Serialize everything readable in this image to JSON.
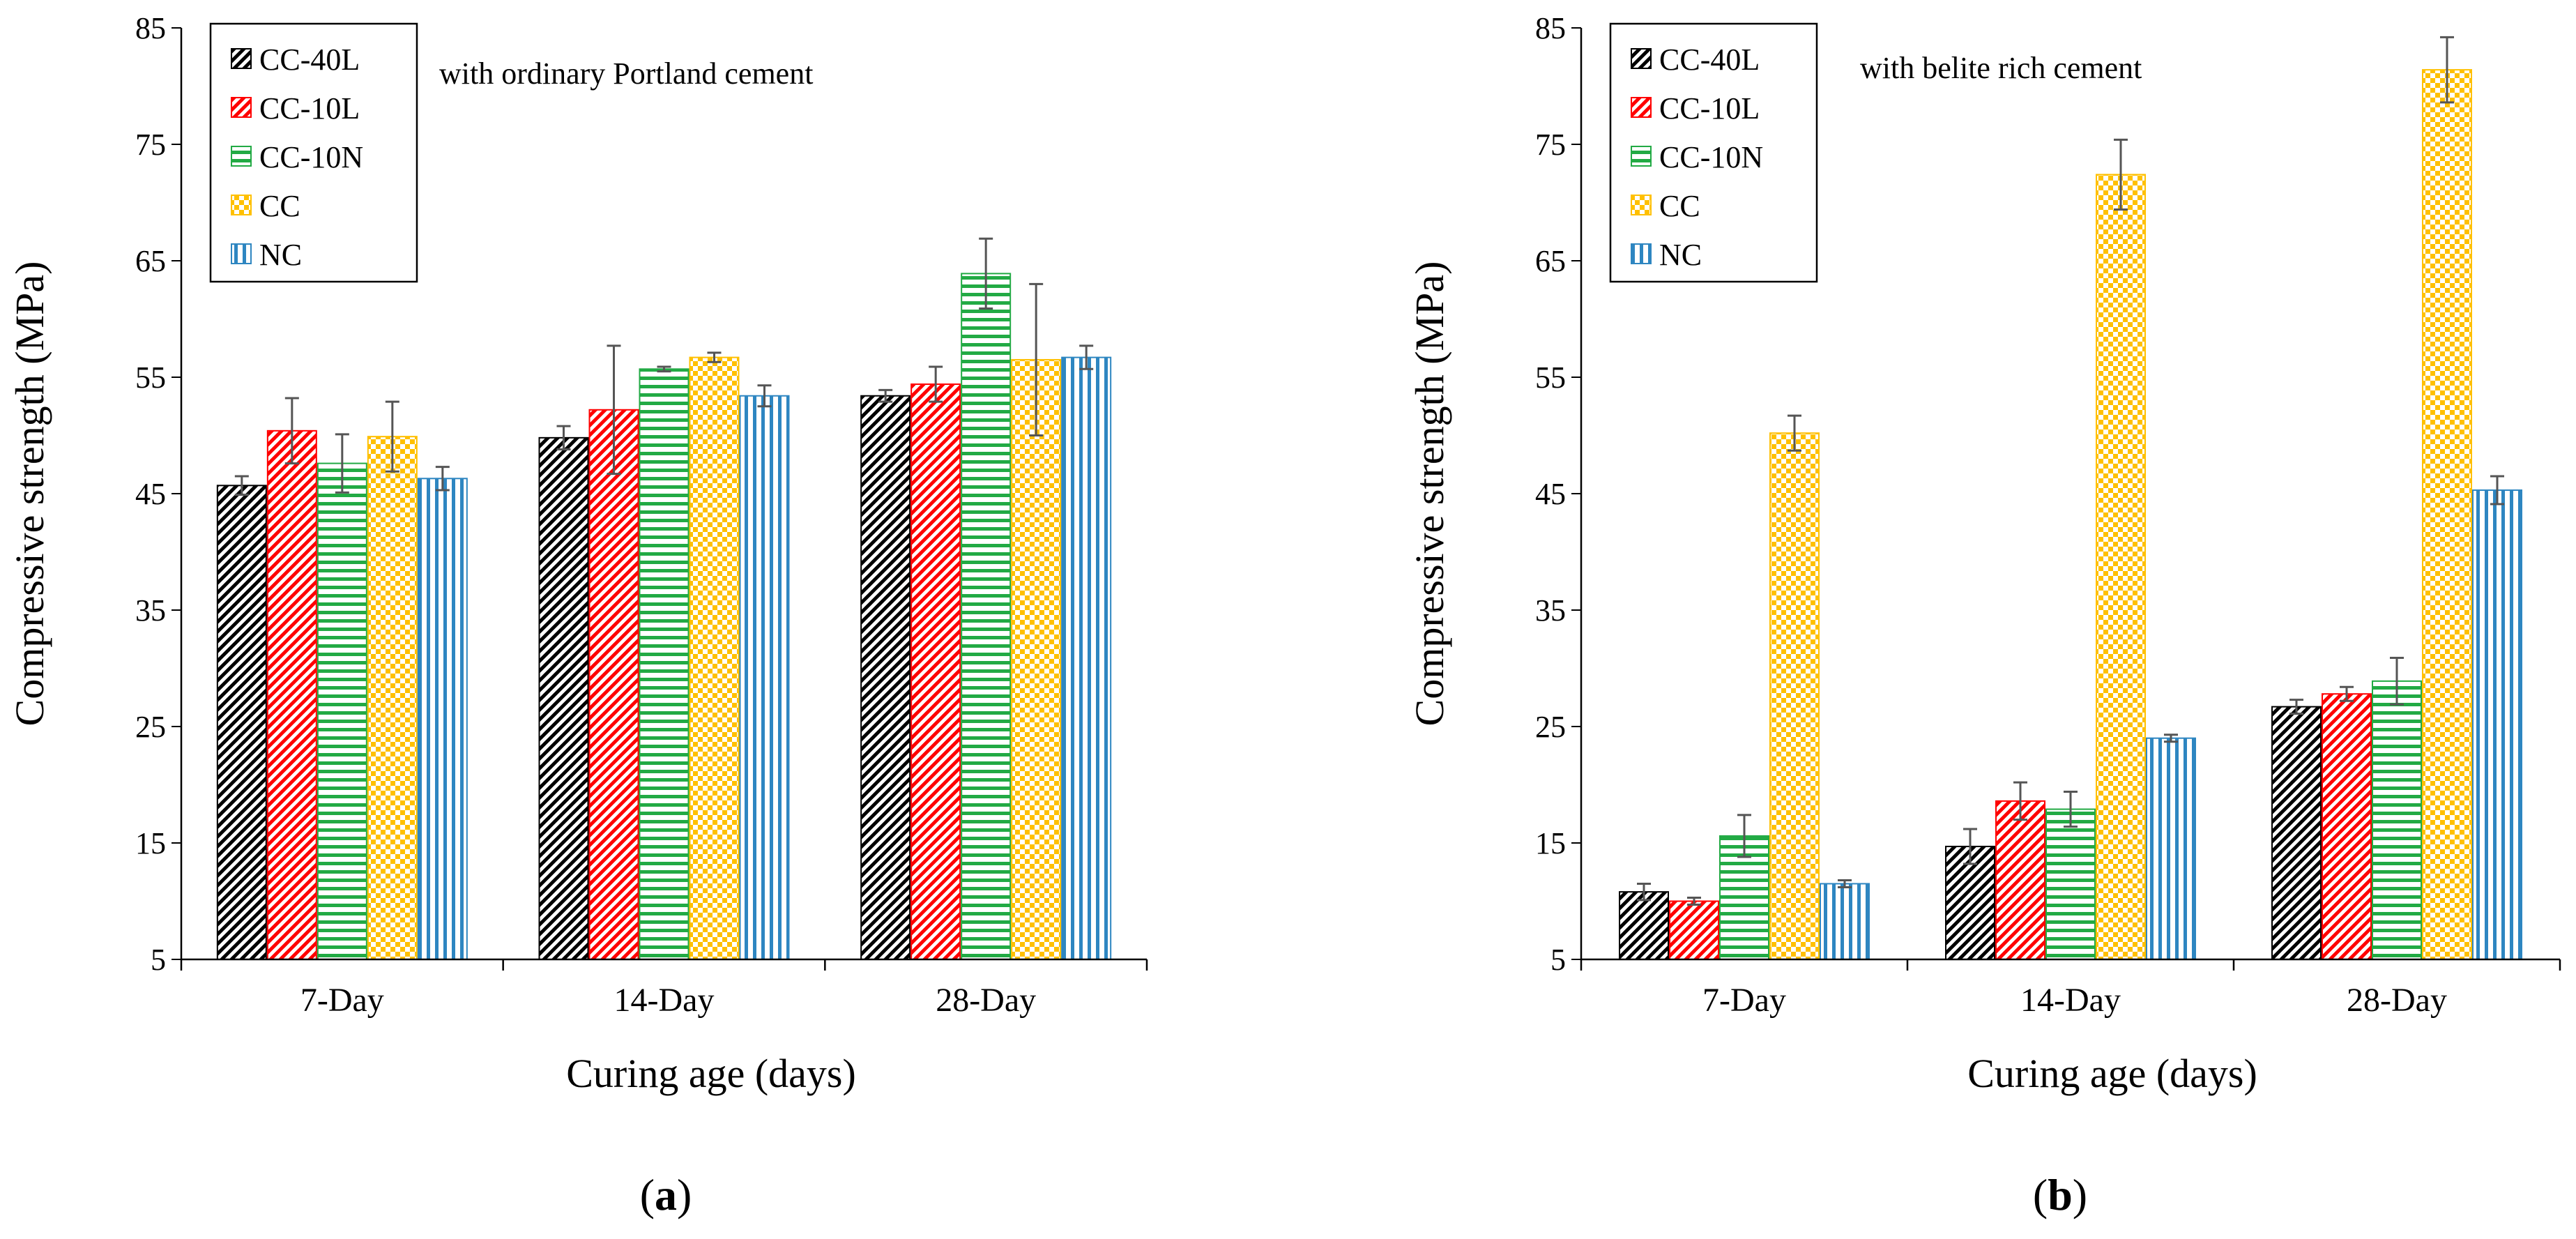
{
  "chart_data": [
    {
      "type": "bar",
      "panel": "a",
      "panel_label": "a",
      "annotation": "with ordinary Portland cement",
      "xlabel": "Curing age (days)",
      "ylabel": "Compressive strength (MPa)",
      "ylim": [
        5,
        85
      ],
      "yticks": [
        5,
        15,
        25,
        35,
        45,
        55,
        65,
        75,
        85
      ],
      "categories": [
        "7-Day",
        "14-Day",
        "28-Day"
      ],
      "legend_position": "top-left",
      "series": [
        {
          "name": "CC-40L",
          "color": "#000000",
          "pattern": "diagonal",
          "values": [
            45.7,
            49.8,
            53.4
          ],
          "errors": [
            0.8,
            1.0,
            0.5
          ]
        },
        {
          "name": "CC-10L",
          "color": "#ff0000",
          "pattern": "diagonal",
          "values": [
            50.4,
            52.2,
            54.4
          ],
          "errors": [
            2.8,
            5.5,
            1.5
          ]
        },
        {
          "name": "CC-10N",
          "color": "#22aa44",
          "pattern": "horizontal",
          "values": [
            47.6,
            55.7,
            63.9
          ],
          "errors": [
            2.5,
            0.2,
            3.0
          ]
        },
        {
          "name": "CC",
          "color": "#ffc000",
          "pattern": "checker",
          "values": [
            49.9,
            56.7,
            56.5
          ],
          "errors": [
            3.0,
            0.4,
            6.5
          ]
        },
        {
          "name": "NC",
          "color": "#2e86c1",
          "pattern": "vertical",
          "values": [
            46.3,
            53.4,
            56.7
          ],
          "errors": [
            1.0,
            0.9,
            1.0
          ]
        }
      ]
    },
    {
      "type": "bar",
      "panel": "b",
      "panel_label": "b",
      "annotation": "with belite rich cement",
      "xlabel": "Curing age (days)",
      "ylabel": "Compressive strength (MPa)",
      "ylim": [
        5,
        85
      ],
      "yticks": [
        5,
        15,
        25,
        35,
        45,
        55,
        65,
        75,
        85
      ],
      "categories": [
        "7-Day",
        "14-Day",
        "28-Day"
      ],
      "legend_position": "top-left",
      "series": [
        {
          "name": "CC-40L",
          "color": "#000000",
          "pattern": "diagonal",
          "values": [
            10.8,
            14.7,
            26.7
          ],
          "errors": [
            0.7,
            1.5,
            0.6
          ]
        },
        {
          "name": "CC-10L",
          "color": "#ff0000",
          "pattern": "diagonal",
          "values": [
            10.0,
            18.6,
            27.8
          ],
          "errors": [
            0.3,
            1.6,
            0.6
          ]
        },
        {
          "name": "CC-10N",
          "color": "#22aa44",
          "pattern": "horizontal",
          "values": [
            15.6,
            17.9,
            28.9
          ],
          "errors": [
            1.8,
            1.5,
            2.0
          ]
        },
        {
          "name": "CC",
          "color": "#ffc000",
          "pattern": "checker",
          "values": [
            50.2,
            72.4,
            81.4
          ],
          "errors": [
            1.5,
            3.0,
            2.8
          ]
        },
        {
          "name": "NC",
          "color": "#2e86c1",
          "pattern": "vertical",
          "values": [
            11.5,
            24.0,
            45.3
          ],
          "errors": [
            0.3,
            0.3,
            1.2
          ]
        }
      ]
    }
  ]
}
